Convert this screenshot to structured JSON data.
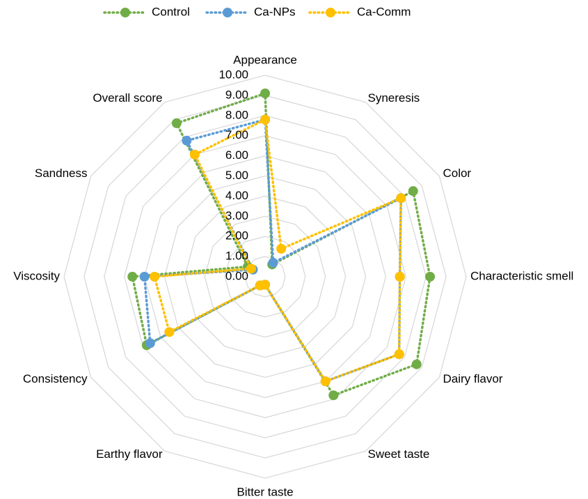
{
  "chart_data": {
    "type": "radar",
    "categories": [
      "Appearance",
      "Syneresis",
      "Color",
      "Characteristic smell",
      "Dairy flavor",
      "Sweet taste",
      "Bitter taste",
      "Earthy flavor",
      "Consistency",
      "Viscosity",
      "Sandness",
      "Overall score"
    ],
    "series": [
      {
        "name": "Control",
        "color": "#70ad47",
        "values": [
          9.1,
          0.7,
          8.5,
          8.2,
          8.7,
          6.8,
          0.4,
          0.5,
          6.8,
          6.6,
          1.0,
          8.8
        ]
      },
      {
        "name": "Ca-NPs",
        "color": "#5b9bd5",
        "values": [
          7.8,
          0.8,
          7.8,
          6.7,
          7.7,
          6.0,
          0.4,
          0.5,
          6.6,
          6.0,
          0.7,
          7.8
        ]
      },
      {
        "name": "Ca-Comm",
        "color": "#ffc000",
        "values": [
          7.8,
          1.6,
          7.8,
          6.7,
          7.7,
          6.0,
          0.4,
          0.5,
          5.5,
          5.5,
          0.8,
          7.0
        ]
      }
    ],
    "ylim": [
      0,
      10
    ],
    "yticks": [
      {
        "value": 0,
        "label": "0.00"
      },
      {
        "value": 1,
        "label": "1.00"
      },
      {
        "value": 2,
        "label": "2.00"
      },
      {
        "value": 3,
        "label": "3.00"
      },
      {
        "value": 4,
        "label": "4.00"
      },
      {
        "value": 5,
        "label": "5.00"
      },
      {
        "value": 6,
        "label": "6.00"
      },
      {
        "value": 7,
        "label": "7.00"
      },
      {
        "value": 8,
        "label": "8.00"
      },
      {
        "value": 9,
        "label": "9.00"
      },
      {
        "value": 10,
        "label": "10.00"
      }
    ],
    "grid": true,
    "legend": "top"
  }
}
